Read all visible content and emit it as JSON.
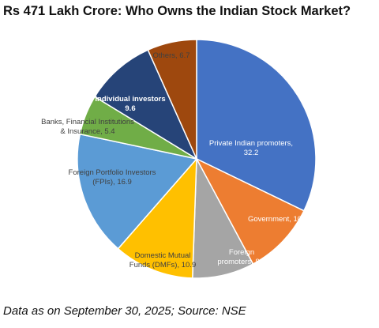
{
  "title": "Rs 471 Lakh Crore: Who Owns the Indian Stock Market?",
  "footer": "Data as on September 30, 2025; Source: NSE",
  "chart_data": {
    "type": "pie",
    "slices": [
      {
        "label_lines": [
          "Private Indian promoters,",
          "32.2"
        ],
        "value": 32.2,
        "color": "#4472C4",
        "text_color": "#FFFFFF",
        "bold": false
      },
      {
        "label_lines": [
          "Government, 10"
        ],
        "value": 10,
        "color": "#ED7D31",
        "text_color": "#FFFFFF",
        "bold": false
      },
      {
        "label_lines": [
          "Foreign",
          "promoters, 8.4"
        ],
        "value": 8.4,
        "color": "#A5A5A5",
        "text_color": "#FFFFFF",
        "bold": false
      },
      {
        "label_lines": [
          "Domestic Mutual",
          "Funds (DMFs), 10.9"
        ],
        "value": 10.9,
        "color": "#FFC000",
        "text_color": "#404040",
        "bold": false
      },
      {
        "label_lines": [
          "Foreign Portfolio Investors",
          "(FPIs), 16.9"
        ],
        "value": 16.9,
        "color": "#5B9BD5",
        "text_color": "#404040",
        "bold": false
      },
      {
        "label_lines": [
          "Banks, Financial Institutions",
          "& Insurance, 5.4"
        ],
        "value": 5.4,
        "color": "#70AD47",
        "text_color": "#404040",
        "bold": false
      },
      {
        "label_lines": [
          "Individual investors",
          "9.6"
        ],
        "value": 9.6,
        "color": "#264478",
        "text_color": "#FFFFFF",
        "bold": true
      },
      {
        "label_lines": [
          "Others, 6.7"
        ],
        "value": 6.7,
        "color": "#9E480E",
        "text_color": "#404040",
        "bold": false
      }
    ]
  }
}
